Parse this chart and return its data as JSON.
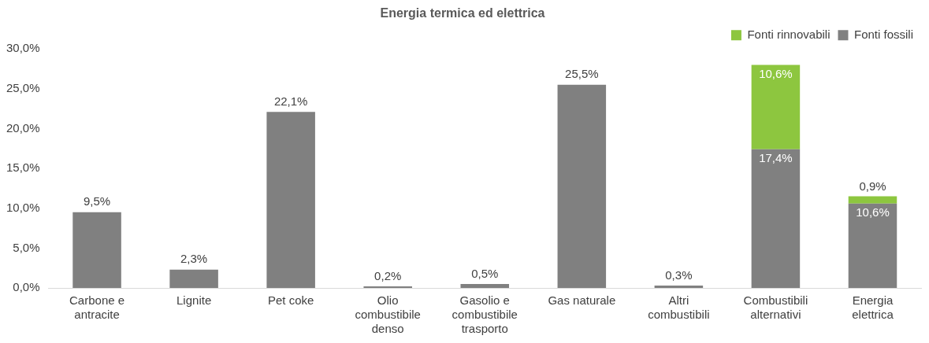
{
  "chart_data": {
    "type": "bar",
    "title": "Energia termica ed elettrica",
    "stacked": true,
    "legend": "top right",
    "categories": [
      "Carbone e antracite",
      "Lignite",
      "Pet coke",
      "Olio combustibile denso",
      "Gasolio e combustibile trasporto",
      "Gas naturale",
      "Altri combustibili",
      "Combustibili alternativi",
      "Energia elettrica"
    ],
    "series": [
      {
        "name": "Fonti fossili",
        "color": "#808080",
        "values": [
          9.5,
          2.3,
          22.1,
          0.2,
          0.5,
          25.5,
          0.3,
          17.4,
          10.6
        ],
        "value_labels": [
          "9,5%",
          "2,3%",
          "22,1%",
          "0,2%",
          "0,5%",
          "25,5%",
          "0,3%",
          "17,4%",
          "10,6%"
        ]
      },
      {
        "name": "Fonti rinnovabili",
        "color": "#8dc63f",
        "values": [
          null,
          null,
          null,
          null,
          null,
          null,
          null,
          10.6,
          0.9
        ],
        "value_labels": [
          null,
          null,
          null,
          null,
          null,
          null,
          null,
          "10,6%",
          "0,9%"
        ]
      }
    ],
    "ylim": [
      0,
      30
    ],
    "yticks": [
      {
        "value": 0,
        "label": "0,0%"
      },
      {
        "value": 5,
        "label": "5,0%"
      },
      {
        "value": 10,
        "label": "10,0%"
      },
      {
        "value": 15,
        "label": "15,0%"
      },
      {
        "value": 20,
        "label": "20,0%"
      },
      {
        "value": 25,
        "label": "25,0%"
      },
      {
        "value": 30,
        "label": "30,0%"
      }
    ],
    "grid": false
  }
}
